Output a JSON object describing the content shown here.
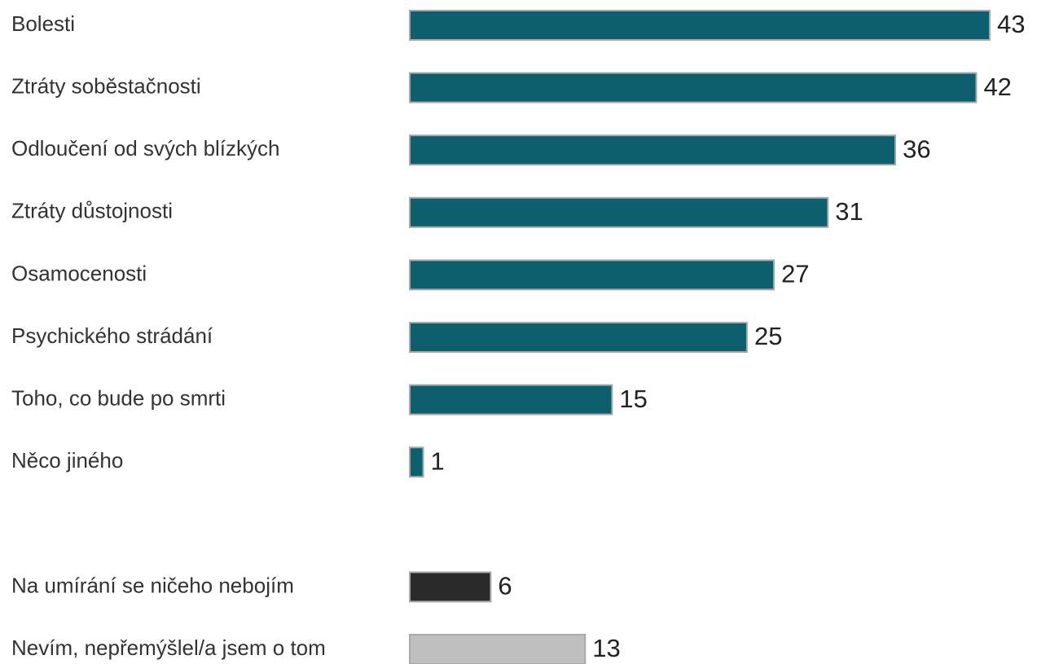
{
  "chart_data": {
    "type": "bar",
    "orientation": "horizontal",
    "categories": [
      "Bolesti",
      "Ztráty soběstačnosti",
      "Odloučení od svých blízkých",
      "Ztráty důstojnosti",
      "Osamocenosti",
      "Psychického strádání",
      "Toho, co bude po smrti",
      "Něco jiného",
      null,
      "Na umírání se ničeho nebojím",
      "Nevím, nepřemýšlel/a jsem o tom"
    ],
    "values": [
      43,
      42,
      36,
      31,
      27,
      25,
      15,
      1,
      null,
      6,
      13
    ],
    "colors": [
      "#0e5f6e",
      "#0e5f6e",
      "#0e5f6e",
      "#0e5f6e",
      "#0e5f6e",
      "#0e5f6e",
      "#0e5f6e",
      "#0e5f6e",
      null,
      "#2b2a2b",
      "#bfbfbf"
    ]
  }
}
